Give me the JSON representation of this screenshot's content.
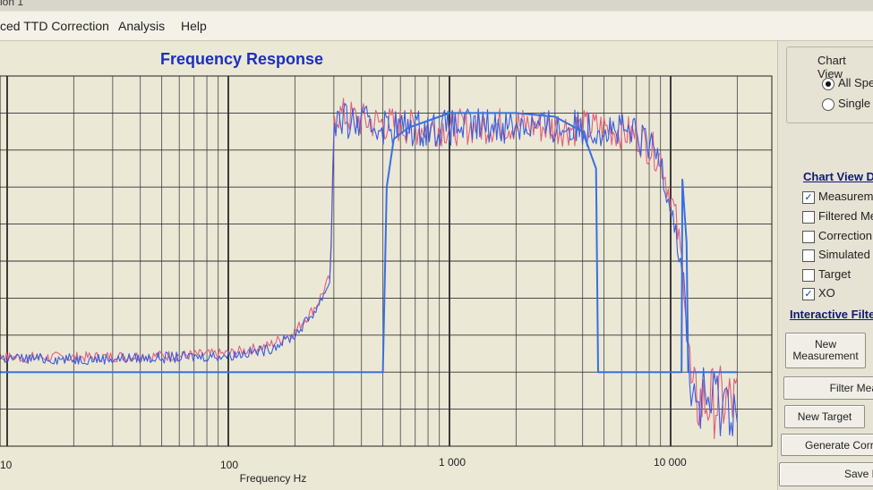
{
  "window": {
    "title_fragment": "ion 1"
  },
  "menu": {
    "items": [
      {
        "label": "ced TTD Correction"
      },
      {
        "label": "Analysis"
      },
      {
        "label": "Help"
      }
    ]
  },
  "chart": {
    "title": "Frequency Response"
  },
  "chart_data": {
    "type": "line",
    "title": "Frequency Response",
    "xlabel": "Frequency Hz",
    "ylabel": "",
    "xscale": "log",
    "x_tick_labels": [
      "10",
      "100",
      "1 000",
      "10 000"
    ],
    "grid": true,
    "series": [
      {
        "color": "#e0607a",
        "points": [
          [
            5,
            0.24
          ],
          [
            20,
            0.24
          ],
          [
            60,
            0.245
          ],
          [
            100,
            0.25
          ],
          [
            150,
            0.27
          ],
          [
            200,
            0.31
          ],
          [
            250,
            0.38
          ],
          [
            290,
            0.46
          ],
          [
            300,
            0.9
          ],
          [
            400,
            0.88
          ],
          [
            700,
            0.86
          ],
          [
            1000,
            0.86
          ],
          [
            2000,
            0.87
          ],
          [
            3000,
            0.86
          ],
          [
            5000,
            0.86
          ],
          [
            7000,
            0.84
          ],
          [
            9000,
            0.78
          ],
          [
            10500,
            0.62
          ],
          [
            11500,
            0.45
          ],
          [
            12500,
            0.12
          ],
          [
            20000,
            0.12
          ]
        ]
      },
      {
        "color": "#3a5cdf",
        "points": [
          [
            5,
            0.24
          ],
          [
            20,
            0.235
          ],
          [
            60,
            0.24
          ],
          [
            100,
            0.245
          ],
          [
            150,
            0.26
          ],
          [
            200,
            0.3
          ],
          [
            250,
            0.37
          ],
          [
            290,
            0.45
          ],
          [
            300,
            0.88
          ],
          [
            400,
            0.87
          ],
          [
            700,
            0.86
          ],
          [
            1000,
            0.86
          ],
          [
            2000,
            0.87
          ],
          [
            3000,
            0.86
          ],
          [
            5000,
            0.86
          ],
          [
            7000,
            0.84
          ],
          [
            9000,
            0.78
          ],
          [
            10500,
            0.6
          ],
          [
            11500,
            0.42
          ],
          [
            12500,
            0.12
          ],
          [
            20000,
            0.12
          ]
        ]
      },
      {
        "color": "#3a6fe0",
        "points": [
          [
            5,
            0.2
          ],
          [
            500,
            0.2
          ],
          [
            520,
            0.7
          ],
          [
            560,
            0.83
          ],
          [
            650,
            0.86
          ],
          [
            1000,
            0.9
          ],
          [
            2000,
            0.9
          ],
          [
            3000,
            0.89
          ],
          [
            4000,
            0.85
          ],
          [
            4600,
            0.75
          ],
          [
            4700,
            0.2
          ],
          [
            10000,
            0.2
          ],
          [
            11000,
            0.2
          ],
          [
            11200,
            0.2
          ],
          [
            11300,
            0.72
          ],
          [
            11800,
            0.55
          ],
          [
            12000,
            0.2
          ],
          [
            20000,
            0.2
          ]
        ]
      }
    ]
  },
  "panel": {
    "chart_view": {
      "title": "Chart View",
      "options": [
        {
          "label": "All Spe",
          "selected": true
        },
        {
          "label": "Single S",
          "selected": false
        }
      ]
    },
    "chart_view_details": {
      "heading": "Chart View D",
      "items": [
        {
          "label": "Measureme",
          "checked": true
        },
        {
          "label": "Filtered Me",
          "checked": false
        },
        {
          "label": "Correction",
          "checked": false
        },
        {
          "label": "Simulated R",
          "checked": false
        },
        {
          "label": "Target",
          "checked": false
        },
        {
          "label": "XO",
          "checked": true
        }
      ]
    },
    "interactive_filters": {
      "heading": "Interactive Filter"
    },
    "buttons": {
      "new_measurement": "New\nMeasurement",
      "filter_measurement": "Filter Meas",
      "new_target": "New Target",
      "generate_correction": "Generate Corr",
      "save": "Save F"
    }
  },
  "check_glyph": "✓"
}
